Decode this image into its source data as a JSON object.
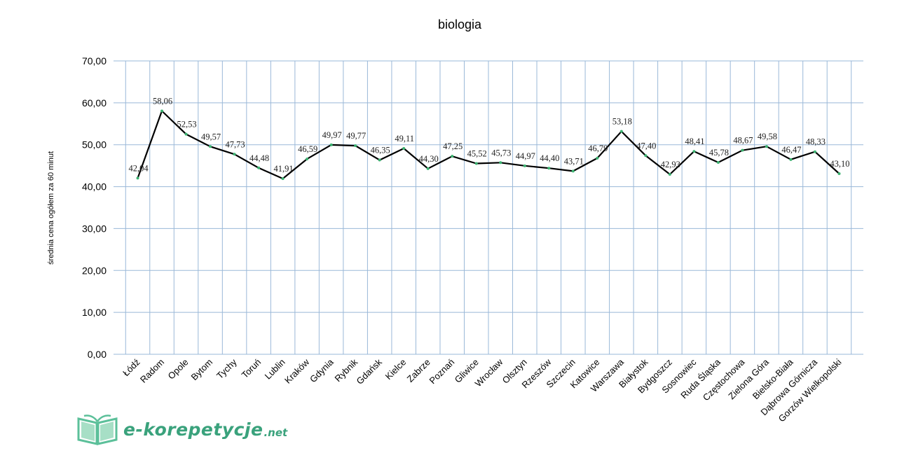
{
  "chart_data": {
    "type": "line",
    "title": "biologia",
    "ylabel": "średnia cena ogółem za 60 minut",
    "xlabel": "",
    "ylim": [
      0,
      70
    ],
    "yticks": [
      "0,00",
      "10,00",
      "20,00",
      "30,00",
      "40,00",
      "50,00",
      "60,00",
      "70,00"
    ],
    "grid": "vertical-and-horizontal",
    "categories": [
      "Łódź",
      "Radom",
      "Opole",
      "Bytom",
      "Tychy",
      "Toruń",
      "Lublin",
      "Kraków",
      "Gdynia",
      "Rybnik",
      "Gdańsk",
      "Kielce",
      "Zabrze",
      "Poznań",
      "Gliwice",
      "Wrocław",
      "Olsztyn",
      "Rzeszów",
      "Szczecin",
      "Katowice",
      "Warszawa",
      "Białystok",
      "Bydgoszcz",
      "Sosnowiec",
      "Ruda Śląska",
      "Częstochowa",
      "Zielona Góra",
      "Bielsko-Biała",
      "Dąbrowa Górnicza",
      "Gorzów Wielkopolski"
    ],
    "values": [
      42.04,
      58.06,
      52.53,
      49.57,
      47.73,
      44.48,
      41.91,
      46.59,
      49.97,
      49.77,
      46.35,
      49.11,
      44.3,
      47.25,
      45.52,
      45.73,
      44.97,
      44.4,
      43.71,
      46.79,
      53.18,
      47.4,
      42.93,
      48.41,
      45.78,
      48.67,
      49.58,
      46.47,
      48.33,
      43.1
    ],
    "data_labels": [
      "42,04",
      "58,06",
      "52,53",
      "49,57",
      "47,73",
      "44,48",
      "41,91",
      "46,59",
      "49,97",
      "49,77",
      "46,35",
      "49,11",
      "44,30",
      "47,25",
      "45,52",
      "45,73",
      "44,97",
      "44,40",
      "43,71",
      "46,79",
      "53,18",
      "47,40",
      "42,93",
      "48,41",
      "45,78",
      "48,67",
      "49,58",
      "46,47",
      "48,33",
      "43,10"
    ],
    "line_color": "#000000",
    "marker_color": "#3cb371",
    "grid_color": "#9ab8d8"
  },
  "logo": {
    "main": "e-korepetycje",
    "suffix": ".net",
    "color": "#3aa27c"
  }
}
